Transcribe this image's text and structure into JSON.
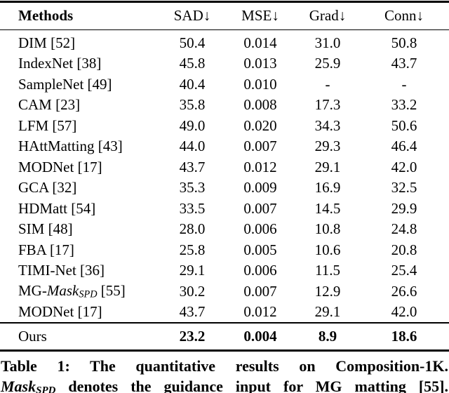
{
  "page": {
    "background": "#ffffff",
    "text_color": "#000000",
    "rule_color": "#000000"
  },
  "table": {
    "headers": [
      "Methods",
      "SAD↓",
      "MSE↓",
      "Grad↓",
      "Conn↓"
    ],
    "rows": [
      {
        "method": [
          {
            "t": "DIM [52]"
          }
        ],
        "values": [
          "50.4",
          "0.014",
          "31.0",
          "50.8"
        ]
      },
      {
        "method": [
          {
            "t": "IndexNet [38]"
          }
        ],
        "values": [
          "45.8",
          "0.013",
          "25.9",
          "43.7"
        ]
      },
      {
        "method": [
          {
            "t": "SampleNet [49]"
          }
        ],
        "values": [
          "40.4",
          "0.010",
          "-",
          "-"
        ]
      },
      {
        "method": [
          {
            "t": "CAM [23]"
          }
        ],
        "values": [
          "35.8",
          "0.008",
          "17.3",
          "33.2"
        ]
      },
      {
        "method": [
          {
            "t": "LFM [57]"
          }
        ],
        "values": [
          "49.0",
          "0.020",
          "34.3",
          "50.6"
        ]
      },
      {
        "method": [
          {
            "t": "HAttMatting [43]"
          }
        ],
        "values": [
          "44.0",
          "0.007",
          "29.3",
          "46.4"
        ]
      },
      {
        "method": [
          {
            "t": "MODNet [17]"
          }
        ],
        "values": [
          "43.7",
          "0.012",
          "29.1",
          "42.0"
        ]
      },
      {
        "method": [
          {
            "t": "GCA [32]"
          }
        ],
        "values": [
          "35.3",
          "0.009",
          "16.9",
          "32.5"
        ]
      },
      {
        "method": [
          {
            "t": "HDMatt [54]"
          }
        ],
        "values": [
          "33.5",
          "0.007",
          "14.5",
          "29.9"
        ]
      },
      {
        "method": [
          {
            "t": "SIM [48]"
          }
        ],
        "values": [
          "28.0",
          "0.006",
          "10.8",
          "24.8"
        ]
      },
      {
        "method": [
          {
            "t": "FBA [17]"
          }
        ],
        "values": [
          "25.8",
          "0.005",
          "10.6",
          "20.8"
        ]
      },
      {
        "method": [
          {
            "t": "TIMI-Net [36]"
          }
        ],
        "values": [
          "29.1",
          "0.006",
          "11.5",
          "25.4"
        ]
      },
      {
        "method": [
          {
            "t": "MG-"
          },
          {
            "t": "Mask",
            "i": true
          },
          {
            "t": "SPD",
            "i": true,
            "sub": true
          },
          {
            "t": " [55]"
          }
        ],
        "values": [
          "30.2",
          "0.007",
          "12.9",
          "26.6"
        ]
      },
      {
        "method": [
          {
            "t": "MODNet [17]"
          }
        ],
        "values": [
          "43.7",
          "0.012",
          "29.1",
          "42.0"
        ]
      }
    ],
    "ours": {
      "method": [
        {
          "t": "Ours"
        }
      ],
      "values": [
        "23.2",
        "0.004",
        "8.9",
        "18.6"
      ]
    }
  },
  "caption": {
    "line1": [
      {
        "t": "Table 1: The quantitative results on Composition-1K.",
        "b": true
      }
    ],
    "line2": [
      {
        "t": "Mask",
        "b": true,
        "i": true
      },
      {
        "t": "SPD",
        "b": true,
        "i": true,
        "sub": true
      },
      {
        "t": " denotes the guidance input for MG matting [55].",
        "b": true
      }
    ]
  }
}
